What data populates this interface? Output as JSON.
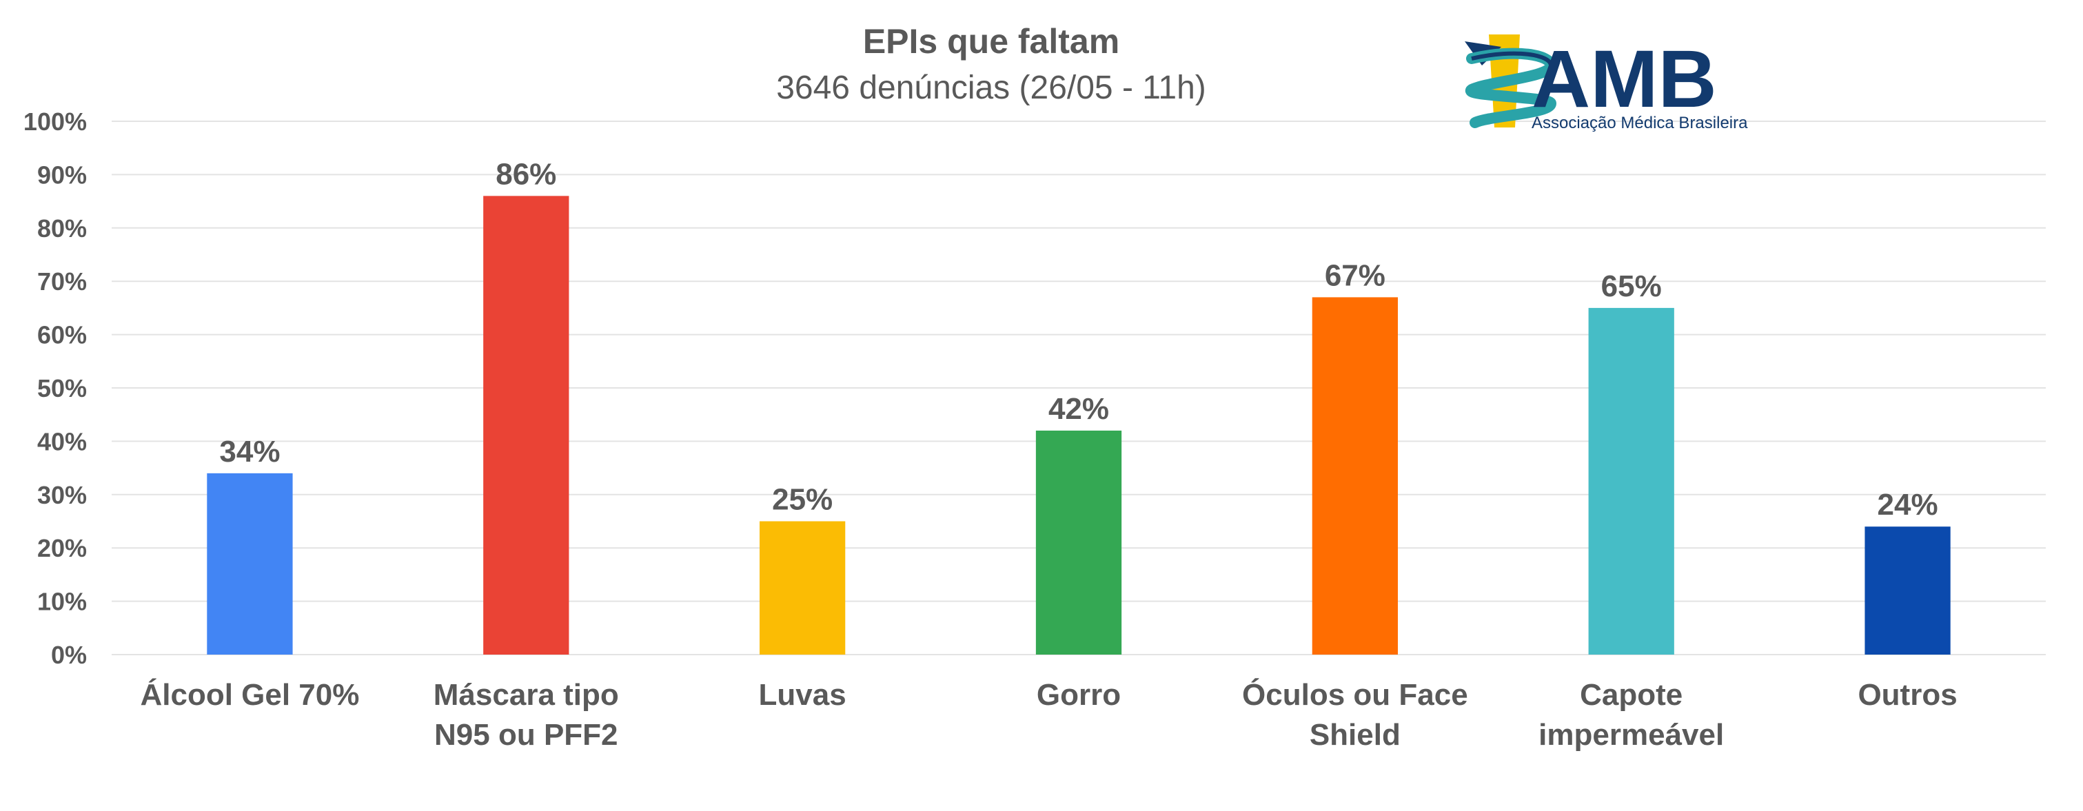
{
  "chart_data": {
    "type": "bar",
    "title": "EPIs que faltam",
    "subtitle": "3646 denúncias (26/05 - 11h)",
    "categories": [
      [
        "Álcool Gel 70%"
      ],
      [
        "Máscara tipo",
        "N95 ou PFF2"
      ],
      [
        "Luvas"
      ],
      [
        "Gorro"
      ],
      [
        "Óculos ou Face",
        "Shield"
      ],
      [
        "Capote",
        "impermeável"
      ],
      [
        "Outros"
      ]
    ],
    "values": [
      34,
      86,
      25,
      42,
      67,
      65,
      24
    ],
    "data_labels": [
      "34%",
      "86%",
      "25%",
      "42%",
      "67%",
      "65%",
      "24%"
    ],
    "colors": [
      "#4285f4",
      "#ea4335",
      "#fbbc04",
      "#34a853",
      "#ff6d01",
      "#46bdc6",
      "#0b4aad"
    ],
    "ylim": [
      0,
      100
    ],
    "yticks": [
      "0%",
      "10%",
      "20%",
      "30%",
      "40%",
      "50%",
      "60%",
      "70%",
      "80%",
      "90%",
      "100%"
    ],
    "grid": true,
    "legend": "none"
  },
  "logo": {
    "name": "AMB",
    "subtitle": "Associação Médica Brasileira",
    "colors": {
      "navy": "#123a6e",
      "teal": "#2aa3a8",
      "gold": "#f5c400"
    }
  }
}
